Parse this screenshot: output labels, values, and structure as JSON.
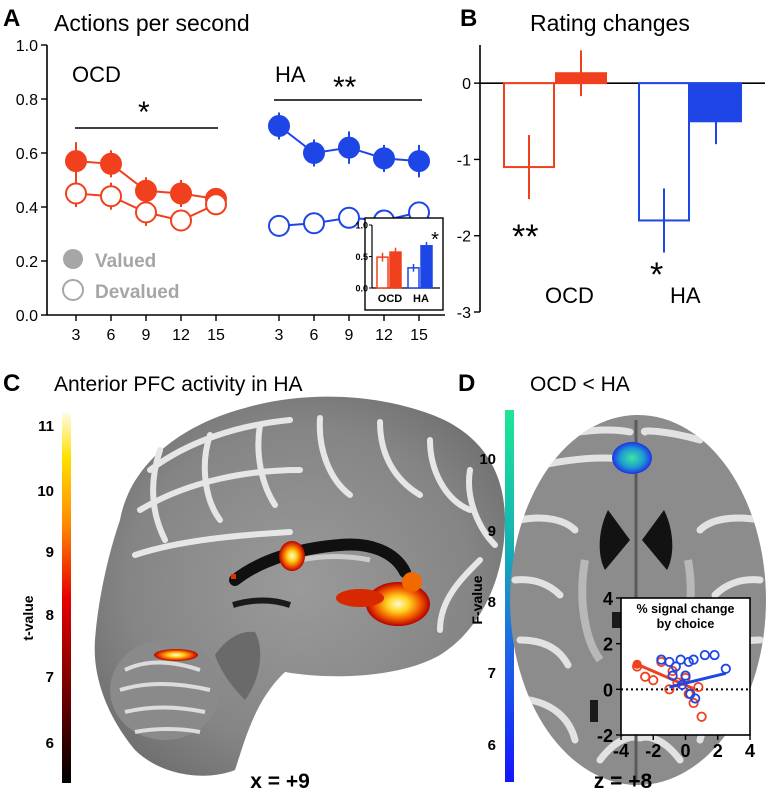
{
  "panel_a": {
    "letter": "A",
    "title": "Actions per second",
    "group_ocd": "OCD",
    "group_ha": "HA",
    "sig_ocd": "*",
    "sig_ha": "**",
    "legend_valued": "Valued",
    "legend_devalued": "Devalued",
    "inset_sig": "*"
  },
  "panel_b": {
    "letter": "B",
    "title": "Rating changes",
    "sig_ocd": "**",
    "sig_ha": "*",
    "label_ocd": "OCD",
    "label_ha": "HA"
  },
  "panel_c": {
    "letter": "C",
    "title": "Anterior PFC activity in HA",
    "colorbar_label": "t-value",
    "colorbar_ticks": [
      "11",
      "10",
      "9",
      "8",
      "7",
      "6"
    ],
    "coord": "x = +9"
  },
  "panel_d": {
    "letter": "D",
    "title": "OCD < HA",
    "colorbar_label": "F-value",
    "colorbar_ticks": [
      "10",
      "9",
      "8",
      "7",
      "6"
    ],
    "coord": "z = +8",
    "inset_title_1": "% signal change",
    "inset_title_2": "by choice"
  },
  "colors": {
    "ocd": "#f0401e",
    "ha": "#1e46e6"
  },
  "chart_data": [
    {
      "id": "actions-per-second",
      "type": "line",
      "title": "Actions per second",
      "ylim": [
        0,
        1.0
      ],
      "yticks": [
        "0.0",
        "0.2",
        "0.4",
        "0.6",
        "0.8",
        "1.0"
      ],
      "x": [
        3,
        6,
        9,
        12,
        15
      ],
      "xticks": [
        "3",
        "6",
        "9",
        "12",
        "15"
      ],
      "series": [
        {
          "name": "Valued",
          "group": "OCD",
          "values": [
            0.57,
            0.56,
            0.46,
            0.45,
            0.43
          ],
          "err": [
            0.07,
            0.05,
            0.05,
            0.05,
            0.04
          ]
        },
        {
          "name": "Devalued",
          "group": "OCD",
          "values": [
            0.45,
            0.44,
            0.38,
            0.35,
            0.41
          ],
          "err": [
            0.05,
            0.05,
            0.05,
            0.04,
            0.04
          ]
        },
        {
          "name": "Valued",
          "group": "HA",
          "values": [
            0.7,
            0.6,
            0.62,
            0.58,
            0.57
          ],
          "err": [
            0.05,
            0.05,
            0.06,
            0.05,
            0.06
          ]
        },
        {
          "name": "Devalued",
          "group": "HA",
          "values": [
            0.33,
            0.34,
            0.36,
            0.35,
            0.38
          ],
          "err": [
            0.04,
            0.04,
            0.04,
            0.04,
            0.04
          ]
        }
      ]
    },
    {
      "id": "actions-inset",
      "type": "bar",
      "categories": [
        "OCD",
        "HA"
      ],
      "ylim": [
        0,
        1.0
      ],
      "yticks": [
        "0.0",
        "0.5",
        "1.0"
      ],
      "series": [
        {
          "name": "Devalued",
          "values": [
            0.49,
            0.32
          ],
          "err": [
            0.07,
            0.06
          ]
        },
        {
          "name": "Valued",
          "values": [
            0.57,
            0.67
          ],
          "err": [
            0.07,
            0.06
          ]
        }
      ]
    },
    {
      "id": "rating-changes",
      "type": "bar",
      "title": "Rating changes",
      "categories": [
        "OCD",
        "HA"
      ],
      "ylim": [
        -3,
        0.5
      ],
      "yticks": [
        "0",
        "-1",
        "-2",
        "-3"
      ],
      "series": [
        {
          "name": "Devalued",
          "values": [
            -1.1,
            -1.8
          ],
          "err": [
            0.42,
            0.42
          ]
        },
        {
          "name": "Valued",
          "values": [
            0.13,
            -0.5
          ],
          "err": [
            0.3,
            0.3
          ]
        }
      ]
    },
    {
      "id": "signal-change-scatter",
      "type": "scatter",
      "title": "% signal change by choice",
      "xlim": [
        -4,
        4
      ],
      "ylim": [
        -2,
        4
      ],
      "xticks": [
        "-4",
        "-2",
        "0",
        "2",
        "4"
      ],
      "yticks": [
        "-2",
        "0",
        "2",
        "4"
      ],
      "series": [
        {
          "name": "OCD",
          "points": [
            [
              -3.0,
              1.0
            ],
            [
              -2.5,
              0.55
            ],
            [
              -1.5,
              1.2
            ],
            [
              -0.8,
              0.8
            ],
            [
              -0.5,
              0.3
            ],
            [
              0.2,
              -0.2
            ],
            [
              0.5,
              -0.6
            ],
            [
              0.8,
              0.1
            ],
            [
              -1.0,
              0.0
            ],
            [
              1.0,
              -1.2
            ],
            [
              -2.0,
              0.4
            ],
            [
              0.0,
              0.5
            ]
          ],
          "fit": [
            [
              -3.0,
              1.1
            ],
            [
              0.6,
              0.0
            ]
          ]
        },
        {
          "name": "HA",
          "points": [
            [
              -1.5,
              1.3
            ],
            [
              -1.0,
              1.2
            ],
            [
              -0.6,
              1.0
            ],
            [
              -0.3,
              1.3
            ],
            [
              0.2,
              1.2
            ],
            [
              0.5,
              1.3
            ],
            [
              1.2,
              1.5
            ],
            [
              1.8,
              1.5
            ],
            [
              2.5,
              0.9
            ],
            [
              -0.2,
              0.2
            ],
            [
              0.0,
              0.6
            ],
            [
              0.6,
              -0.4
            ],
            [
              0.3,
              -0.2
            ],
            [
              -0.8,
              0.6
            ]
          ],
          "fit": [
            [
              -1.0,
              0.1
            ],
            [
              2.5,
              0.7
            ]
          ]
        }
      ]
    }
  ]
}
